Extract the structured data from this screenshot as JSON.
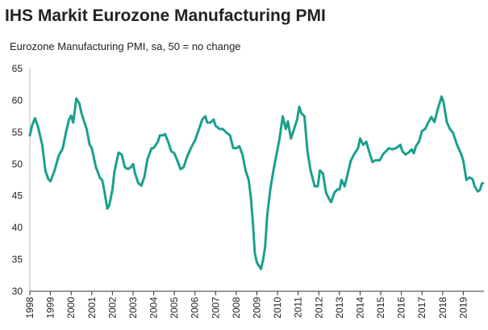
{
  "chart_data": {
    "type": "line",
    "title": "IHS Markit Eurozone Manufacturing PMI",
    "subtitle": "Eurozone Manufacturing PMI, sa, 50 = no change",
    "color": "#1aa08c",
    "grid": false,
    "xlim": [
      1998,
      2020
    ],
    "xticks": [
      1998,
      1999,
      2000,
      2001,
      2002,
      2003,
      2004,
      2005,
      2006,
      2007,
      2008,
      2009,
      2010,
      2011,
      2012,
      2013,
      2014,
      2015,
      2016,
      2017,
      2018,
      2019
    ],
    "ylim": [
      30,
      65
    ],
    "yticks": [
      30,
      35,
      40,
      45,
      50,
      55,
      60,
      65
    ],
    "x": [
      1998.0,
      1998.1,
      1998.25,
      1998.4,
      1998.6,
      1998.75,
      1998.9,
      1999.0,
      1999.2,
      1999.4,
      1999.6,
      1999.75,
      1999.9,
      2000.0,
      2000.1,
      2000.2,
      2000.25,
      2000.4,
      2000.5,
      2000.75,
      2000.9,
      2001.0,
      2001.2,
      2001.4,
      2001.5,
      2001.6,
      2001.75,
      2001.85,
      2002.0,
      2002.1,
      2002.3,
      2002.45,
      2002.6,
      2002.75,
      2002.9,
      2003.0,
      2003.1,
      2003.25,
      2003.4,
      2003.55,
      2003.7,
      2003.9,
      2004.0,
      2004.2,
      2004.3,
      2004.45,
      2004.55,
      2004.7,
      2004.85,
      2005.0,
      2005.15,
      2005.3,
      2005.45,
      2005.6,
      2005.8,
      2006.0,
      2006.2,
      2006.35,
      2006.5,
      2006.6,
      2006.75,
      2006.9,
      2007.0,
      2007.2,
      2007.35,
      2007.5,
      2007.7,
      2007.85,
      2008.0,
      2008.15,
      2008.3,
      2008.45,
      2008.6,
      2008.7,
      2008.8,
      2008.9,
      2009.0,
      2009.1,
      2009.2,
      2009.3,
      2009.4,
      2009.5,
      2009.65,
      2009.8,
      2009.95,
      2010.1,
      2010.25,
      2010.4,
      2010.5,
      2010.65,
      2010.8,
      2010.95,
      2011.05,
      2011.15,
      2011.3,
      2011.45,
      2011.6,
      2011.8,
      2011.95,
      2012.05,
      2012.2,
      2012.35,
      2012.5,
      2012.6,
      2012.75,
      2012.9,
      2013.0,
      2013.1,
      2013.25,
      2013.4,
      2013.55,
      2013.7,
      2013.9,
      2014.0,
      2014.15,
      2014.3,
      2014.45,
      2014.6,
      2014.75,
      2014.95,
      2015.1,
      2015.25,
      2015.4,
      2015.55,
      2015.75,
      2015.95,
      2016.05,
      2016.2,
      2016.35,
      2016.5,
      2016.6,
      2016.7,
      2016.85,
      2017.0,
      2017.15,
      2017.3,
      2017.45,
      2017.6,
      2017.75,
      2017.9,
      2017.95,
      2018.05,
      2018.2,
      2018.35,
      2018.5,
      2018.7,
      2018.9,
      2019.0,
      2019.15,
      2019.3,
      2019.45,
      2019.55,
      2019.7,
      2019.8,
      2019.9,
      2019.95
    ],
    "values": [
      54.5,
      56,
      57.2,
      55.8,
      53,
      49,
      47.6,
      47.3,
      49,
      51.3,
      52.5,
      55,
      57,
      57.6,
      56.5,
      59,
      60.3,
      59.5,
      58,
      55.5,
      53,
      52.5,
      49.5,
      47.8,
      47.5,
      46,
      43,
      43.5,
      46,
      48.8,
      51.8,
      51.5,
      49.5,
      49.2,
      49.5,
      50,
      48.5,
      47,
      46.6,
      48,
      50.8,
      52.5,
      52.5,
      53.5,
      54.5,
      54.5,
      54.7,
      53.5,
      52,
      51.7,
      50.5,
      49.2,
      49.5,
      51,
      52.5,
      53.7,
      55.5,
      57,
      57.5,
      56.5,
      56.5,
      57,
      56,
      55.5,
      55.5,
      55,
      54.5,
      52.5,
      52.5,
      52.8,
      51.5,
      49,
      47.5,
      45,
      41,
      36,
      34.5,
      34,
      33.5,
      35,
      37,
      42,
      46,
      49,
      51.5,
      54,
      57.5,
      55.5,
      56.7,
      54,
      55.5,
      57,
      59,
      58,
      57.5,
      52,
      49,
      46.5,
      46.5,
      49,
      48.5,
      45.5,
      44.5,
      44,
      45.5,
      46,
      46,
      47.5,
      46.5,
      48.5,
      50.5,
      51.5,
      52.5,
      54,
      53,
      53.5,
      51.8,
      50.3,
      50.6,
      50.6,
      51.5,
      52,
      52.5,
      52.3,
      52.5,
      53,
      52,
      51.5,
      51.8,
      52.3,
      51.7,
      52.8,
      53.5,
      55.2,
      55.5,
      56.5,
      57.4,
      56.6,
      58.5,
      60.1,
      60.6,
      59.6,
      56.6,
      55.5,
      54.9,
      53,
      51.5,
      50.5,
      47.5,
      47.9,
      47.6,
      46.5,
      45.7,
      45.9,
      46.9,
      47.0
    ]
  }
}
